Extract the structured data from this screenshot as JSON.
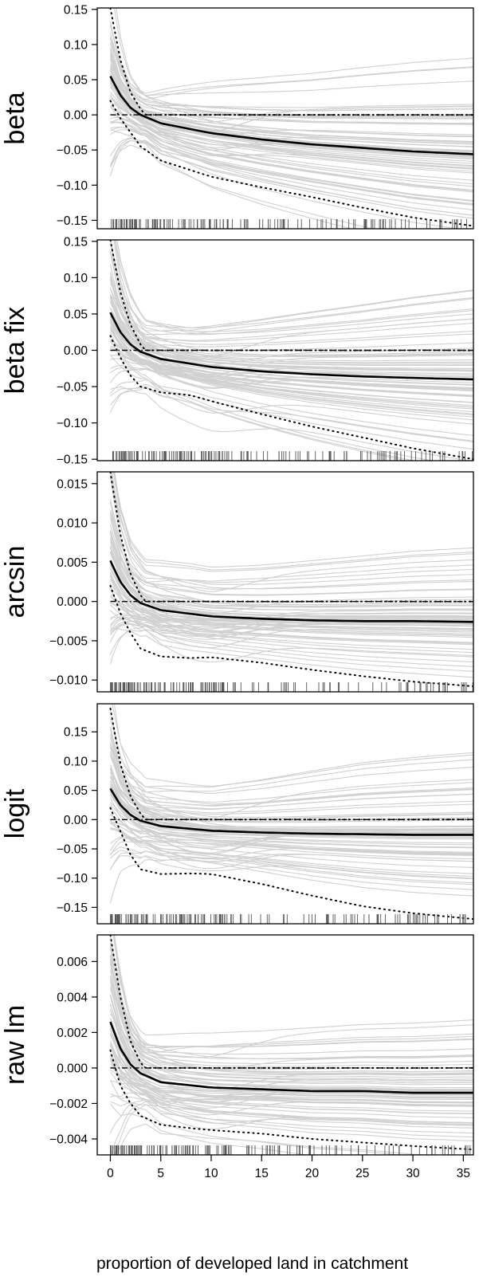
{
  "chart_data": {
    "type": "line",
    "xlabel": "proportion of developed land in catchment",
    "xlim": [
      -1.3,
      36
    ],
    "x_ticks": [
      0,
      5,
      10,
      15,
      20,
      25,
      30,
      35
    ],
    "x_tick_labels": [
      "0",
      "5",
      "10",
      "15",
      "20",
      "25",
      "30",
      "35"
    ],
    "grid": false,
    "legend": "none",
    "colors": {
      "mean_curve": "#000000",
      "bootstrap_curves": "#d0d0d0",
      "reference_line": "#000000",
      "rug": "#555555"
    },
    "series_styles": [
      "bootstrap curves: thin light-grey lines",
      "fitted curve: solid black",
      "confidence bounds: dotted black",
      "zero reference: dash-dot black",
      "rug of observations along the bottom"
    ],
    "panels": [
      {
        "ylabel": "beta",
        "ylim": [
          -0.162,
          0.152
        ],
        "y_ticks": [
          -0.15,
          -0.1,
          -0.05,
          0.0,
          0.05,
          0.1,
          0.15
        ],
        "y_tick_labels": [
          "−0.15",
          "−0.10",
          "−0.05",
          "0.00",
          "0.05",
          "0.10",
          "0.15"
        ],
        "mean": [
          [
            0,
            0.055
          ],
          [
            1,
            0.028
          ],
          [
            2,
            0.01
          ],
          [
            3,
            0.0
          ],
          [
            5,
            -0.012
          ],
          [
            10,
            -0.026
          ],
          [
            15,
            -0.035
          ],
          [
            20,
            -0.042
          ],
          [
            25,
            -0.047
          ],
          [
            30,
            -0.052
          ],
          [
            36,
            -0.056
          ]
        ],
        "upper": [
          [
            0,
            0.152
          ],
          [
            1,
            0.078
          ],
          [
            2,
            0.032
          ],
          [
            3,
            0.008
          ],
          [
            3.5,
            0.0
          ],
          [
            36,
            0.0
          ]
        ],
        "lower": [
          [
            0,
            0.02
          ],
          [
            1,
            -0.005
          ],
          [
            2,
            -0.025
          ],
          [
            3,
            -0.045
          ],
          [
            5,
            -0.065
          ],
          [
            10,
            -0.088
          ],
          [
            15,
            -0.103
          ],
          [
            20,
            -0.117
          ],
          [
            25,
            -0.132
          ],
          [
            30,
            -0.146
          ],
          [
            36,
            -0.158
          ]
        ]
      },
      {
        "ylabel": "beta fix",
        "ylim": [
          -0.152,
          0.152
        ],
        "y_ticks": [
          -0.15,
          -0.1,
          -0.05,
          0.0,
          0.05,
          0.1,
          0.15
        ],
        "y_tick_labels": [
          "−0.15",
          "−0.10",
          "−0.05",
          "0.00",
          "0.05",
          "0.10",
          "0.15"
        ],
        "mean": [
          [
            0,
            0.052
          ],
          [
            1,
            0.025
          ],
          [
            2,
            0.008
          ],
          [
            3,
            -0.002
          ],
          [
            5,
            -0.012
          ],
          [
            10,
            -0.023
          ],
          [
            15,
            -0.029
          ],
          [
            20,
            -0.033
          ],
          [
            25,
            -0.036
          ],
          [
            30,
            -0.038
          ],
          [
            36,
            -0.04
          ]
        ],
        "upper": [
          [
            0,
            0.152
          ],
          [
            1,
            0.08
          ],
          [
            2,
            0.035
          ],
          [
            3,
            0.008
          ],
          [
            3.5,
            0.0
          ],
          [
            36,
            0.0
          ]
        ],
        "lower": [
          [
            0,
            0.02
          ],
          [
            1,
            -0.01
          ],
          [
            2,
            -0.035
          ],
          [
            3,
            -0.05
          ],
          [
            5,
            -0.058
          ],
          [
            8,
            -0.062
          ],
          [
            10,
            -0.07
          ],
          [
            15,
            -0.088
          ],
          [
            20,
            -0.105
          ],
          [
            25,
            -0.12
          ],
          [
            30,
            -0.135
          ],
          [
            36,
            -0.15
          ]
        ]
      },
      {
        "ylabel": "arcsin",
        "ylim": [
          -0.0115,
          0.0165
        ],
        "y_ticks": [
          -0.01,
          -0.005,
          0.0,
          0.005,
          0.01,
          0.015
        ],
        "y_tick_labels": [
          "−0.010",
          "−0.005",
          "0.000",
          "0.005",
          "0.010",
          "0.015"
        ],
        "mean": [
          [
            0,
            0.0052
          ],
          [
            1,
            0.0025
          ],
          [
            2,
            0.0008
          ],
          [
            3,
            -0.0002
          ],
          [
            5,
            -0.0011
          ],
          [
            10,
            -0.0019
          ],
          [
            15,
            -0.0022
          ],
          [
            20,
            -0.0024
          ],
          [
            25,
            -0.0025
          ],
          [
            30,
            -0.0025
          ],
          [
            36,
            -0.0026
          ]
        ],
        "upper": [
          [
            0,
            0.0165
          ],
          [
            1,
            0.0085
          ],
          [
            2,
            0.0035
          ],
          [
            3,
            0.0008
          ],
          [
            3.5,
            0.0
          ],
          [
            36,
            0.0
          ]
        ],
        "lower": [
          [
            0,
            0.002
          ],
          [
            1,
            -0.0015
          ],
          [
            2,
            -0.004
          ],
          [
            3,
            -0.006
          ],
          [
            5,
            -0.007
          ],
          [
            8,
            -0.0072
          ],
          [
            10,
            -0.0071
          ],
          [
            15,
            -0.0078
          ],
          [
            20,
            -0.0087
          ],
          [
            25,
            -0.0095
          ],
          [
            30,
            -0.0102
          ],
          [
            36,
            -0.0108
          ]
        ]
      },
      {
        "ylabel": "logit",
        "ylim": [
          -0.178,
          0.198
        ],
        "y_ticks": [
          -0.15,
          -0.1,
          -0.05,
          0.0,
          0.05,
          0.1,
          0.15
        ],
        "y_tick_labels": [
          "−0.15",
          "−0.10",
          "−0.05",
          "0.00",
          "0.05",
          "0.10",
          "0.15"
        ],
        "mean": [
          [
            0,
            0.053
          ],
          [
            1,
            0.025
          ],
          [
            2,
            0.008
          ],
          [
            3,
            -0.002
          ],
          [
            5,
            -0.011
          ],
          [
            10,
            -0.019
          ],
          [
            15,
            -0.022
          ],
          [
            20,
            -0.024
          ],
          [
            25,
            -0.025
          ],
          [
            30,
            -0.026
          ],
          [
            36,
            -0.026
          ]
        ],
        "upper": [
          [
            0,
            0.19
          ],
          [
            1,
            0.095
          ],
          [
            2,
            0.04
          ],
          [
            3,
            0.01
          ],
          [
            3.5,
            0.0
          ],
          [
            36,
            0.0
          ]
        ],
        "lower": [
          [
            0,
            0.02
          ],
          [
            1,
            -0.02
          ],
          [
            2,
            -0.06
          ],
          [
            3,
            -0.085
          ],
          [
            5,
            -0.093
          ],
          [
            8,
            -0.092
          ],
          [
            10,
            -0.093
          ],
          [
            15,
            -0.11
          ],
          [
            20,
            -0.13
          ],
          [
            25,
            -0.148
          ],
          [
            30,
            -0.16
          ],
          [
            36,
            -0.17
          ]
        ]
      },
      {
        "ylabel": "raw lm",
        "ylim": [
          -0.0049,
          0.0075
        ],
        "y_ticks": [
          -0.004,
          -0.002,
          0.0,
          0.002,
          0.004,
          0.006
        ],
        "y_tick_labels": [
          "−0.004",
          "−0.002",
          "0.000",
          "0.002",
          "0.004",
          "0.006"
        ],
        "mean": [
          [
            0,
            0.0026
          ],
          [
            1,
            0.0011
          ],
          [
            2,
            0.0002
          ],
          [
            3,
            -0.0003
          ],
          [
            5,
            -0.0008
          ],
          [
            10,
            -0.0011
          ],
          [
            15,
            -0.0012
          ],
          [
            20,
            -0.0013
          ],
          [
            25,
            -0.0013
          ],
          [
            30,
            -0.0014
          ],
          [
            36,
            -0.0014
          ]
        ],
        "upper": [
          [
            0,
            0.0075
          ],
          [
            1,
            0.004
          ],
          [
            2,
            0.0015
          ],
          [
            3,
            0.0003
          ],
          [
            3.5,
            0.0
          ],
          [
            36,
            0.0
          ]
        ],
        "lower": [
          [
            0,
            0.001
          ],
          [
            1,
            -0.001
          ],
          [
            2,
            -0.002
          ],
          [
            3,
            -0.0027
          ],
          [
            5,
            -0.0032
          ],
          [
            8,
            -0.0034
          ],
          [
            10,
            -0.0035
          ],
          [
            15,
            -0.0037
          ],
          [
            20,
            -0.004
          ],
          [
            25,
            -0.0042
          ],
          [
            30,
            -0.0044
          ],
          [
            36,
            -0.0046
          ]
        ]
      }
    ]
  }
}
